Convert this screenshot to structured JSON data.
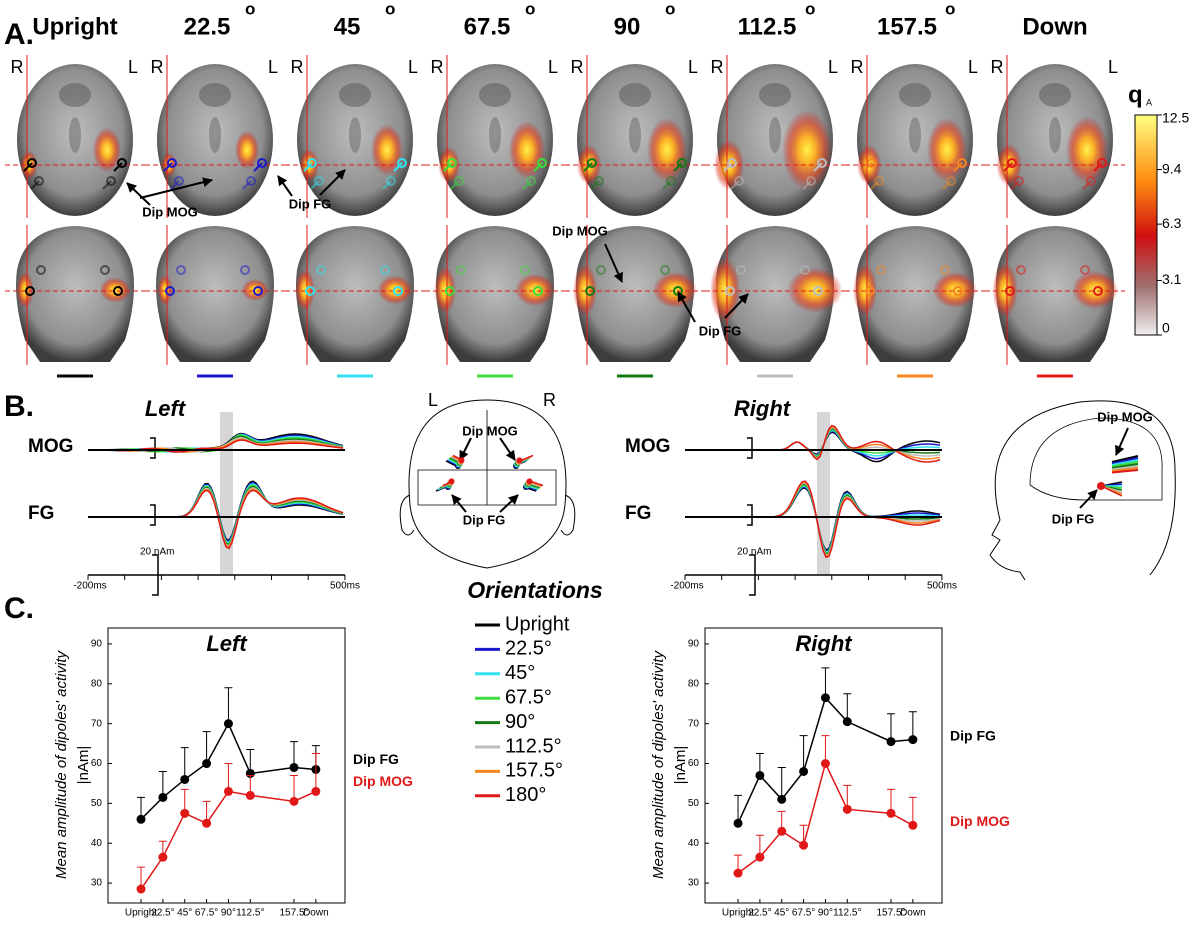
{
  "panel_a": {
    "label": "A.",
    "column_headers": [
      {
        "text": "Upright"
      },
      {
        "text": "22.5",
        "sup": "o"
      },
      {
        "text": "45",
        "sup": "o"
      },
      {
        "text": "67.5",
        "sup": "o"
      },
      {
        "text": "90",
        "sup": "o"
      },
      {
        "text": "112.5",
        "sup": "o"
      },
      {
        "text": "157.5",
        "sup": "o"
      },
      {
        "text": "Down"
      }
    ],
    "side_left": "R",
    "side_right": "L",
    "annotations": [
      "Dip MOG",
      "Dip FG",
      "Dip MOG",
      "Dip FG"
    ],
    "colorbar": {
      "title": "q",
      "subscript": "A",
      "lim": [
        0,
        12.5
      ],
      "ticks": [
        0,
        3.1,
        6.3,
        9.4,
        12.5
      ]
    }
  },
  "panel_b": {
    "label": "B.",
    "left_title": "Left",
    "right_title": "Right",
    "rows": [
      "MOG",
      "FG"
    ],
    "scale": "20 nAm",
    "time_start": "-200ms",
    "time_end": "500ms",
    "head_labels": [
      "L",
      "R"
    ],
    "dipoles": [
      "Dip MOG",
      "Dip FG"
    ]
  },
  "legend": {
    "title": "Orientations",
    "entries": [
      {
        "name": "Upright",
        "color": "#000000"
      },
      {
        "name": "22.5°",
        "color": "#1a1acc"
      },
      {
        "name": "45°",
        "color": "#33e0f0"
      },
      {
        "name": "67.5°",
        "color": "#3ddc3d"
      },
      {
        "name": "90°",
        "color": "#137a13"
      },
      {
        "name": "112.5°",
        "color": "#bdbdbd"
      },
      {
        "name": "157.5°",
        "color": "#f5861f"
      },
      {
        "name": "180°",
        "color": "#e01818"
      }
    ]
  },
  "panel_c": {
    "label": "C."
  },
  "chart_data": [
    {
      "type": "line",
      "title": "Left",
      "y_label": "Mean amplitude of dipoles' activity",
      "y_unit": "|nAm|",
      "x": [
        0,
        22.5,
        45,
        67.5,
        90,
        112.5,
        157.5,
        180
      ],
      "xlim": [
        -34,
        210
      ],
      "xticks": [
        {
          "value": 0,
          "label": "Upright"
        },
        {
          "value": 22.5,
          "label": "22.5°"
        },
        {
          "value": 45,
          "label": "45°"
        },
        {
          "value": 67.5,
          "label": "67.5°"
        },
        {
          "value": 90,
          "label": "90°"
        },
        {
          "value": 112.5,
          "label": "112.5°"
        },
        {
          "value": 157.5,
          "label": "157.5°"
        },
        {
          "value": 180,
          "label": "Down"
        }
      ],
      "ylim": [
        25,
        94
      ],
      "yticks": [
        30,
        40,
        50,
        60,
        70,
        80,
        90
      ],
      "series": [
        {
          "name": "Dip FG",
          "color": "#000000",
          "values": [
            46,
            51.5,
            56,
            60,
            70,
            57.5,
            59,
            58.5
          ],
          "errors": [
            5.5,
            6.5,
            8,
            8,
            9,
            6,
            6.5,
            6
          ]
        },
        {
          "name": "Dip MOG",
          "color": "#e01818",
          "values": [
            28.5,
            36.5,
            47.5,
            45,
            53,
            52,
            50.5,
            53
          ],
          "errors": [
            5.5,
            4,
            6,
            5.5,
            7,
            5,
            6.5,
            9.5
          ]
        }
      ]
    },
    {
      "type": "line",
      "title": "Right",
      "y_label": "Mean amplitude of dipoles' activity",
      "y_unit": "|nAm|",
      "x": [
        0,
        22.5,
        45,
        67.5,
        90,
        112.5,
        157.5,
        180
      ],
      "xlim": [
        -34,
        210
      ],
      "xticks": [
        {
          "value": 0,
          "label": "Upright"
        },
        {
          "value": 22.5,
          "label": "22.5°"
        },
        {
          "value": 45,
          "label": "45°"
        },
        {
          "value": 67.5,
          "label": "67.5°"
        },
        {
          "value": 90,
          "label": "90°"
        },
        {
          "value": 112.5,
          "label": "112.5°"
        },
        {
          "value": 157.5,
          "label": "157.5°"
        },
        {
          "value": 180,
          "label": "Down"
        }
      ],
      "ylim": [
        25,
        94
      ],
      "yticks": [
        30,
        40,
        50,
        60,
        70,
        80,
        90
      ],
      "series": [
        {
          "name": "Dip FG",
          "color": "#000000",
          "values": [
            45,
            57,
            51,
            58,
            76.5,
            70.5,
            65.5,
            66
          ],
          "errors": [
            7,
            5.5,
            8,
            9,
            7.5,
            7,
            7,
            7
          ]
        },
        {
          "name": "Dip MOG",
          "color": "#e01818",
          "values": [
            32.5,
            36.5,
            43,
            39.5,
            60,
            48.5,
            47.5,
            44.5
          ],
          "errors": [
            4.5,
            5.5,
            5,
            5,
            7,
            6,
            6,
            7
          ]
        }
      ]
    }
  ]
}
